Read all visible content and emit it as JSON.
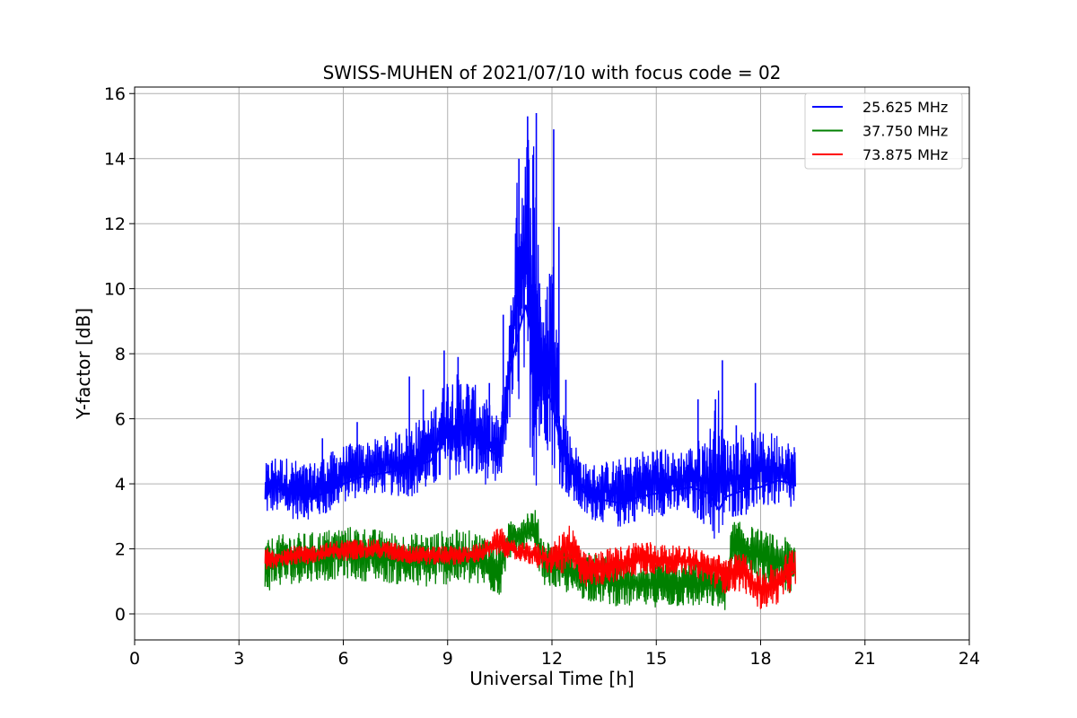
{
  "chart_data": {
    "type": "line",
    "title": "SWISS-MUHEN of 2021/07/10 with focus code = 02",
    "xlabel": "Universal Time [h]",
    "ylabel": "Y-factor [dB]",
    "xlim": [
      0,
      24
    ],
    "ylim": [
      -0.8,
      16.2
    ],
    "x_ticks": [
      0,
      3,
      6,
      9,
      12,
      15,
      18,
      21,
      24
    ],
    "y_ticks": [
      0,
      2,
      4,
      6,
      8,
      10,
      12,
      14,
      16
    ],
    "grid": true,
    "legend_position": "top-right",
    "series": [
      {
        "name": "25.625 MHz",
        "color": "#0000ff",
        "x": [
          3.75,
          4.0,
          4.5,
          5.0,
          5.5,
          6.0,
          6.5,
          7.0,
          7.5,
          8.0,
          8.5,
          9.0,
          9.5,
          10.0,
          10.5,
          10.75,
          11.0,
          11.25,
          11.5,
          11.75,
          12.0,
          12.25,
          12.5,
          13.0,
          13.5,
          14.0,
          14.5,
          15.0,
          15.5,
          16.0,
          16.5,
          16.8,
          17.0,
          17.5,
          18.0,
          18.5,
          19.0
        ],
        "values": [
          3.8,
          3.9,
          3.7,
          3.6,
          3.7,
          4.0,
          4.2,
          4.3,
          4.4,
          4.5,
          4.7,
          5.5,
          5.8,
          5.2,
          4.8,
          7.2,
          8.5,
          9.5,
          8.0,
          7.0,
          6.5,
          5.2,
          4.5,
          3.6,
          3.5,
          3.4,
          3.6,
          3.7,
          3.8,
          3.9,
          3.7,
          3.2,
          3.6,
          3.8,
          3.9,
          4.1,
          4.0
        ],
        "band_low": [
          3.0,
          3.1,
          2.9,
          2.9,
          3.0,
          3.4,
          3.6,
          3.7,
          3.6,
          3.6,
          3.8,
          4.1,
          4.2,
          4.0,
          3.8,
          5.8,
          6.2,
          6.8,
          3.4,
          5.5,
          4.5,
          3.9,
          3.5,
          2.9,
          2.8,
          2.6,
          2.9,
          3.0,
          3.0,
          3.1,
          2.6,
          1.8,
          2.9,
          3.0,
          3.2,
          3.3,
          3.1
        ],
        "band_high": [
          4.6,
          4.9,
          4.8,
          4.6,
          4.9,
          5.2,
          5.3,
          5.4,
          5.6,
          5.9,
          6.2,
          7.4,
          7.4,
          6.8,
          6.0,
          8.6,
          13.5,
          15.0,
          15.3,
          9.0,
          12.0,
          7.0,
          5.6,
          4.6,
          4.7,
          4.8,
          5.0,
          5.2,
          5.0,
          5.2,
          5.6,
          7.0,
          5.4,
          5.6,
          5.6,
          5.6,
          5.2
        ],
        "spikes": [
          [
            5.4,
            5.4
          ],
          [
            6.4,
            5.9
          ],
          [
            7.9,
            7.3
          ],
          [
            8.3,
            6.9
          ],
          [
            8.9,
            8.1
          ],
          [
            9.3,
            7.9
          ],
          [
            10.2,
            7.1
          ],
          [
            10.6,
            9.2
          ],
          [
            11.05,
            14.0
          ],
          [
            11.3,
            15.3
          ],
          [
            11.55,
            15.4
          ],
          [
            12.05,
            14.9
          ],
          [
            12.2,
            11.9
          ],
          [
            12.4,
            7.2
          ],
          [
            16.2,
            6.6
          ],
          [
            16.7,
            6.6
          ],
          [
            16.9,
            7.8
          ],
          [
            17.3,
            5.8
          ],
          [
            17.85,
            7.1
          ]
        ]
      },
      {
        "name": "37.750 MHz",
        "color": "#008000",
        "x": [
          3.75,
          4.0,
          4.5,
          5.0,
          5.5,
          6.0,
          6.5,
          7.0,
          7.5,
          8.0,
          8.5,
          9.0,
          9.5,
          10.0,
          10.5,
          10.75,
          11.0,
          11.25,
          11.5,
          11.75,
          12.0,
          12.5,
          13.0,
          13.5,
          14.0,
          14.5,
          15.0,
          15.5,
          16.0,
          16.5,
          17.0,
          17.2,
          17.5,
          18.0,
          18.5,
          19.0
        ],
        "values": [
          1.5,
          1.6,
          1.7,
          1.7,
          1.8,
          1.9,
          1.9,
          1.8,
          1.7,
          1.6,
          1.6,
          1.7,
          1.7,
          1.6,
          1.4,
          2.1,
          2.3,
          2.5,
          2.4,
          1.6,
          1.5,
          1.3,
          1.1,
          1.0,
          0.9,
          0.9,
          0.9,
          0.9,
          0.9,
          0.9,
          0.9,
          2.2,
          2.1,
          1.9,
          1.6,
          1.5
        ],
        "band_low": [
          0.6,
          0.8,
          0.9,
          1.0,
          1.0,
          1.1,
          1.0,
          1.0,
          0.9,
          0.8,
          0.8,
          0.9,
          0.9,
          0.8,
          0.5,
          1.7,
          1.8,
          1.9,
          1.8,
          0.9,
          0.8,
          0.6,
          0.4,
          0.3,
          0.2,
          0.2,
          0.2,
          0.2,
          0.2,
          0.2,
          0.1,
          1.4,
          1.3,
          0.9,
          0.6,
          0.6
        ],
        "band_high": [
          2.2,
          2.4,
          2.5,
          2.5,
          2.6,
          2.7,
          2.7,
          2.6,
          2.5,
          2.5,
          2.5,
          2.6,
          2.6,
          2.5,
          2.3,
          2.8,
          3.0,
          3.2,
          3.3,
          2.4,
          2.2,
          2.0,
          1.9,
          1.8,
          1.7,
          1.6,
          1.6,
          1.6,
          1.6,
          1.6,
          1.5,
          2.9,
          2.8,
          2.6,
          2.4,
          2.3
        ]
      },
      {
        "name": "73.875 MHz",
        "color": "#ff0000",
        "x": [
          3.75,
          4.0,
          4.5,
          5.0,
          5.5,
          6.0,
          6.5,
          7.0,
          7.5,
          8.0,
          8.5,
          9.0,
          9.5,
          10.0,
          10.5,
          10.75,
          11.0,
          11.25,
          11.5,
          12.0,
          12.5,
          13.0,
          13.5,
          14.0,
          14.5,
          15.0,
          15.5,
          16.0,
          16.5,
          17.0,
          17.5,
          18.0,
          18.5,
          19.0
        ],
        "values": [
          1.7,
          1.7,
          1.8,
          1.8,
          1.9,
          2.0,
          2.0,
          2.0,
          1.9,
          1.8,
          1.8,
          1.8,
          1.8,
          1.9,
          2.2,
          2.0,
          1.9,
          1.9,
          1.8,
          1.6,
          1.8,
          1.3,
          1.3,
          1.5,
          1.7,
          1.6,
          1.6,
          1.6,
          1.4,
          1.2,
          1.3,
          0.7,
          0.9,
          1.3
        ],
        "band_low": [
          1.3,
          1.4,
          1.5,
          1.5,
          1.6,
          1.6,
          1.7,
          1.7,
          1.6,
          1.5,
          1.5,
          1.5,
          1.5,
          1.6,
          1.8,
          1.7,
          1.6,
          1.6,
          1.4,
          1.2,
          1.2,
          0.8,
          0.9,
          1.0,
          1.2,
          1.2,
          1.2,
          1.2,
          0.9,
          0.6,
          0.7,
          0.1,
          0.3,
          0.8
        ],
        "band_high": [
          2.1,
          2.0,
          2.1,
          2.1,
          2.2,
          2.3,
          2.3,
          2.3,
          2.2,
          2.1,
          2.1,
          2.1,
          2.1,
          2.2,
          2.7,
          2.4,
          2.2,
          2.2,
          2.2,
          2.1,
          2.9,
          1.8,
          2.0,
          2.1,
          2.3,
          2.2,
          2.1,
          2.1,
          1.9,
          1.8,
          1.9,
          1.4,
          1.6,
          2.2
        ]
      }
    ]
  }
}
